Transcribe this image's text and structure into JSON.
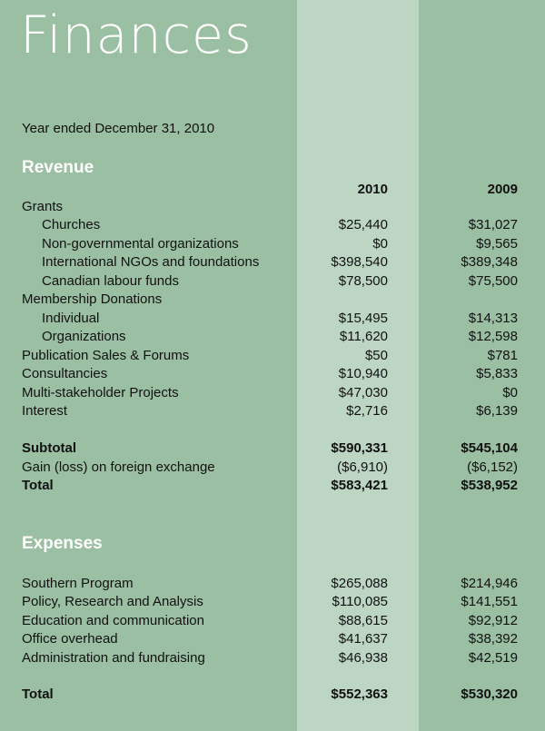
{
  "title": "Finances",
  "subtitle": "Year ended December 31, 2010",
  "revenue": {
    "heading": "Revenue",
    "columns": [
      "2010",
      "2009"
    ],
    "rows": [
      {
        "label": "Grants",
        "v2010": "",
        "v2009": ""
      },
      {
        "label": "Churches",
        "indent": true,
        "v2010": "$25,440",
        "v2009": "$31,027"
      },
      {
        "label": "Non-governmental organizations",
        "indent": true,
        "v2010": "$0",
        "v2009": "$9,565"
      },
      {
        "label": "International NGOs and foundations",
        "indent": true,
        "v2010": "$398,540",
        "v2009": "$389,348"
      },
      {
        "label": "Canadian labour funds",
        "indent": true,
        "v2010": "$78,500",
        "v2009": "$75,500"
      },
      {
        "label": "Membership Donations",
        "v2010": "",
        "v2009": ""
      },
      {
        "label": "Individual",
        "indent": true,
        "v2010": "$15,495",
        "v2009": "$14,313"
      },
      {
        "label": "Organizations",
        "indent": true,
        "v2010": "$11,620",
        "v2009": "$12,598"
      },
      {
        "label": "Publication Sales & Forums",
        "v2010": "$50",
        "v2009": "$781"
      },
      {
        "label": "Consultancies",
        "v2010": "$10,940",
        "v2009": "$5,833"
      },
      {
        "label": "Multi-stakeholder Projects",
        "v2010": "$47,030",
        "v2009": "$0"
      },
      {
        "label": "Interest",
        "v2010": "$2,716",
        "v2009": "$6,139"
      }
    ],
    "subtotal": {
      "label": "Subtotal",
      "v2010": "$590,331",
      "v2009": "$545,104"
    },
    "gain": {
      "label": "Gain (loss) on foreign exchange",
      "v2010": "($6,910)",
      "v2009": "($6,152)"
    },
    "total": {
      "label": "Total",
      "v2010": "$583,421",
      "v2009": "$538,952"
    }
  },
  "expenses": {
    "heading": "Expenses",
    "rows": [
      {
        "label": "Southern Program",
        "v2010": "$265,088",
        "v2009": "$214,946"
      },
      {
        "label": "Policy, Research and Analysis",
        "v2010": "$110,085",
        "v2009": "$141,551"
      },
      {
        "label": "Education and communication",
        "v2010": "$88,615",
        "v2009": "$92,912"
      },
      {
        "label": "Office overhead",
        "v2010": "$41,637",
        "v2009": "$38,392"
      },
      {
        "label": "Administration and fundraising",
        "v2010": "$46,938",
        "v2009": "$42,519"
      }
    ],
    "total": {
      "label": "Total",
      "v2010": "$552,363",
      "v2009": "$530,320"
    }
  }
}
